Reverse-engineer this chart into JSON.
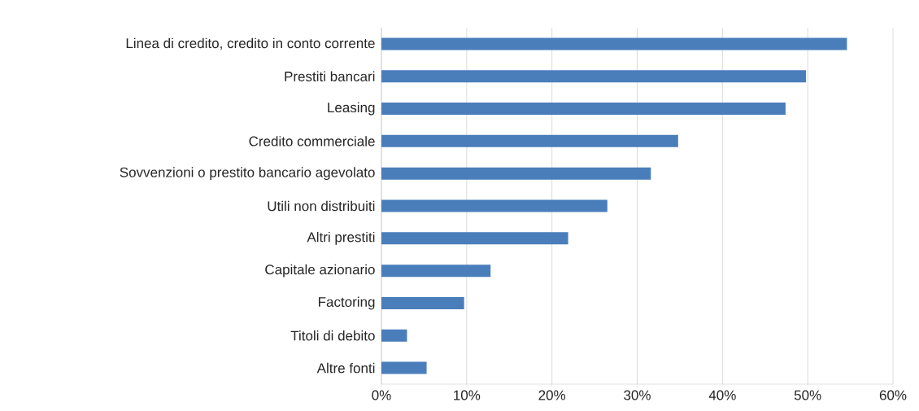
{
  "chart_data": {
    "type": "bar",
    "orientation": "horizontal",
    "categories": [
      "Linea di credito, credito in conto corrente",
      "Prestiti bancari",
      "Leasing",
      "Credito commerciale",
      "Sovvenzioni o prestito bancario agevolato",
      "Utili non distribuiti",
      "Altri prestiti",
      "Capitale azionario",
      "Factoring",
      "Titoli di debito",
      "Altre fonti"
    ],
    "values": [
      54.6,
      49.8,
      47.4,
      34.8,
      31.6,
      26.5,
      21.9,
      12.8,
      9.7,
      3.0,
      5.3
    ],
    "color": "#4a7ebb",
    "xlim": [
      0,
      60
    ],
    "xticks": [
      {
        "value": 0,
        "label": "0%"
      },
      {
        "value": 10,
        "label": "10%"
      },
      {
        "value": 20,
        "label": "20%"
      },
      {
        "value": 30,
        "label": "30%"
      },
      {
        "value": 40,
        "label": "40%"
      },
      {
        "value": 50,
        "label": "50%"
      },
      {
        "value": 60,
        "label": "60%"
      }
    ],
    "grid": "x"
  }
}
